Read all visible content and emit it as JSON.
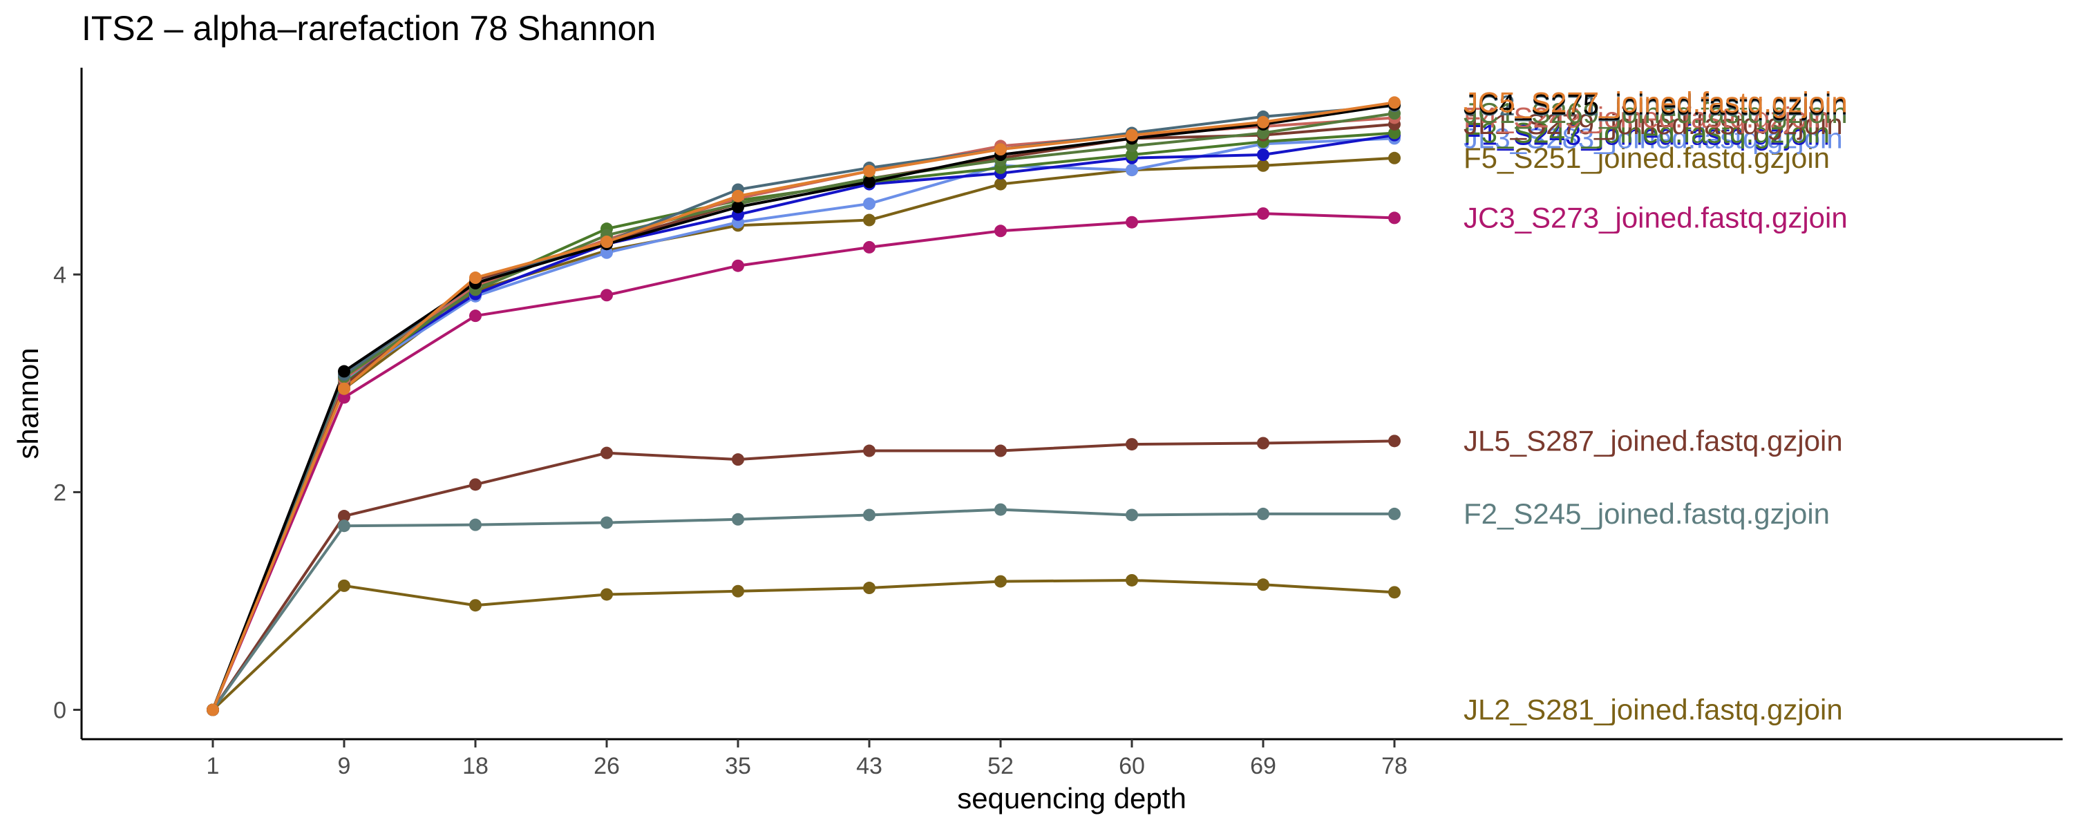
{
  "chart_data": {
    "type": "line",
    "title": "ITS2 – alpha–rarefaction 78 Shannon",
    "xlabel": "sequencing depth",
    "ylabel": "shannon",
    "x": [
      1,
      9,
      18,
      26,
      35,
      43,
      52,
      60,
      69,
      78
    ],
    "x_ticks": [
      "1",
      "9",
      "18",
      "26",
      "35",
      "43",
      "52",
      "60",
      "69",
      "78"
    ],
    "y_ticks": [
      0,
      2,
      4
    ],
    "ylim": [
      -0.27,
      5.9
    ],
    "grid": false,
    "legend": "direct labels at line ends (right)",
    "series": [
      {
        "name": "JL5_S287_joined.fastq.gzjoin",
        "color": "#7b3a2e",
        "values": [
          0,
          1.78,
          2.07,
          2.36,
          2.3,
          2.38,
          2.38,
          2.44,
          2.45,
          2.47
        ]
      },
      {
        "name": "JL2_S281_joined.fastq.gzjoin",
        "color": "#7b6116",
        "values": [
          0,
          1.14,
          0.96,
          1.06,
          1.09,
          1.12,
          1.18,
          1.19,
          1.15,
          1.08
        ]
      },
      {
        "name": "F2_S245_joined.fastq.gzjoin",
        "color": "#5e7e80",
        "values": [
          0,
          1.69,
          1.7,
          1.72,
          1.75,
          1.79,
          1.84,
          1.79,
          1.8,
          1.8
        ]
      },
      {
        "name": "JC3_S273_joined.fastq.gzjoin",
        "color": "#b0176e",
        "values": [
          0,
          2.87,
          3.62,
          3.81,
          4.08,
          4.25,
          4.4,
          4.48,
          4.56,
          4.52
        ]
      },
      {
        "name": "F5_S251_joined.fastq.gzjoin",
        "color": "#7b6116",
        "values": [
          0,
          2.95,
          3.85,
          4.22,
          4.45,
          4.5,
          4.83,
          4.96,
          5.0,
          5.07
        ]
      },
      {
        "name": "JL3_S283_joined.fastq.gzjoin",
        "color": "#6b8fe8",
        "values": [
          0,
          3.02,
          3.8,
          4.2,
          4.48,
          4.65,
          5.0,
          4.96,
          5.2,
          5.25
        ]
      },
      {
        "name": "F1_S243_joined.fastq.gzjoin",
        "color": "#1414c8",
        "values": [
          0,
          3.05,
          3.82,
          4.28,
          4.55,
          4.83,
          4.93,
          5.07,
          5.1,
          5.28
        ]
      },
      {
        "name": "F3_S247_joined.fastq.gzjoin",
        "color": "#4a7a2a",
        "values": [
          0,
          3.0,
          3.88,
          4.42,
          4.68,
          4.85,
          4.98,
          5.1,
          5.22,
          5.3
        ]
      },
      {
        "name": "JL1_S279_joined.fastq.gzjoin",
        "color": "#7b3a2e",
        "values": [
          0,
          2.98,
          3.95,
          4.3,
          4.65,
          4.88,
          5.07,
          5.25,
          5.28,
          5.38
        ]
      },
      {
        "name": "F4_S249_joined.fastq.gzjoin",
        "color": "#c8645a",
        "values": [
          0,
          3.04,
          3.9,
          4.32,
          4.7,
          4.95,
          5.18,
          5.28,
          5.36,
          5.44
        ]
      },
      {
        "name": "JC1_S269_joined.fastq.gzjoin",
        "color": "#557a3c",
        "values": [
          0,
          3.06,
          3.86,
          4.36,
          4.65,
          4.88,
          5.05,
          5.18,
          5.3,
          5.48
        ]
      },
      {
        "name": "JC2_S271_joined.fastq.gzjoin",
        "color": "#4a6a7a",
        "values": [
          0,
          3.08,
          3.92,
          4.3,
          4.78,
          4.98,
          5.15,
          5.3,
          5.45,
          5.55
        ]
      },
      {
        "name": "JC4_S275_joined.fastq.gzjoin",
        "color": "#000000",
        "values": [
          0,
          3.11,
          3.92,
          4.28,
          4.62,
          4.85,
          5.1,
          5.25,
          5.38,
          5.56
        ]
      },
      {
        "name": "JC5_S277_joined.fastq.gzjoin",
        "color": "#e07d2e",
        "values": [
          0,
          2.95,
          3.97,
          4.3,
          4.72,
          4.95,
          5.15,
          5.28,
          5.4,
          5.58
        ]
      }
    ]
  }
}
